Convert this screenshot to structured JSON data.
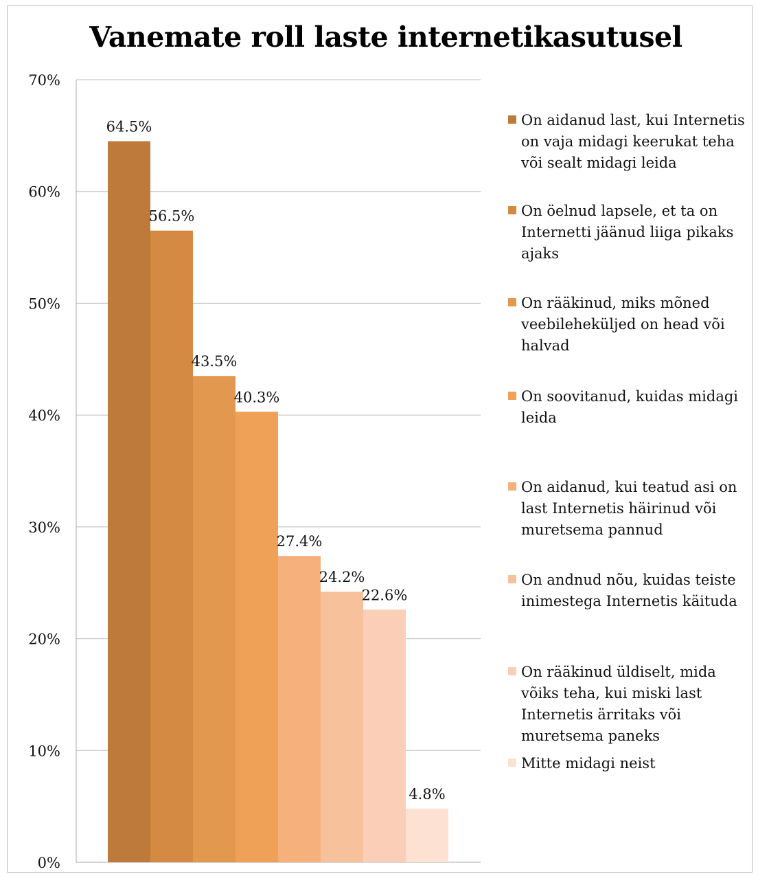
{
  "chart_data": {
    "type": "bar",
    "title": "Vanemate roll laste internetikasutusel",
    "xlabel": "",
    "ylabel": "",
    "ylim": [
      0,
      70
    ],
    "y_ticks": [
      "0%",
      "10%",
      "20%",
      "30%",
      "40%",
      "50%",
      "60%",
      "70%"
    ],
    "y_tick_values": [
      0,
      10,
      20,
      30,
      40,
      50,
      60,
      70
    ],
    "grid": true,
    "legend_position": "right",
    "series": [
      {
        "name": "On aidanud last, kui Internetis on vaja midagi keerukat teha või sealt midagi leida",
        "value": 64.5,
        "label": "64.5%",
        "color": "#bd7a3b"
      },
      {
        "name": "On öelnud lapsele, et ta on Internetti jäänud liiga pikaks ajaks",
        "value": 56.5,
        "label": "56.5%",
        "color": "#d48a42"
      },
      {
        "name": "On rääkinud, miks mõned veebileheküljed on head või halvad",
        "value": 43.5,
        "label": "43.5%",
        "color": "#e2984f"
      },
      {
        "name": "On soovitanud, kuidas midagi leida",
        "value": 40.3,
        "label": "40.3%",
        "color": "#f0a158"
      },
      {
        "name": "On aidanud, kui teatud asi on last Internetis häirinud või muretsema pannud",
        "value": 27.4,
        "label": "27.4%",
        "color": "#f5b07c"
      },
      {
        "name": "On andnud nõu, kuidas teiste inimestega Internetis käituda",
        "value": 24.2,
        "label": "24.2%",
        "color": "#f7c19c"
      },
      {
        "name": "On rääkinud üldiselt, mida võiks teha, kui miski last Internetis ärritaks või muretsema paneks",
        "value": 22.6,
        "label": "22.6%",
        "color": "#fbcfb7"
      },
      {
        "name": "Mitte midagi neist",
        "value": 4.8,
        "label": "4.8%",
        "color": "#fde1d2"
      }
    ]
  }
}
